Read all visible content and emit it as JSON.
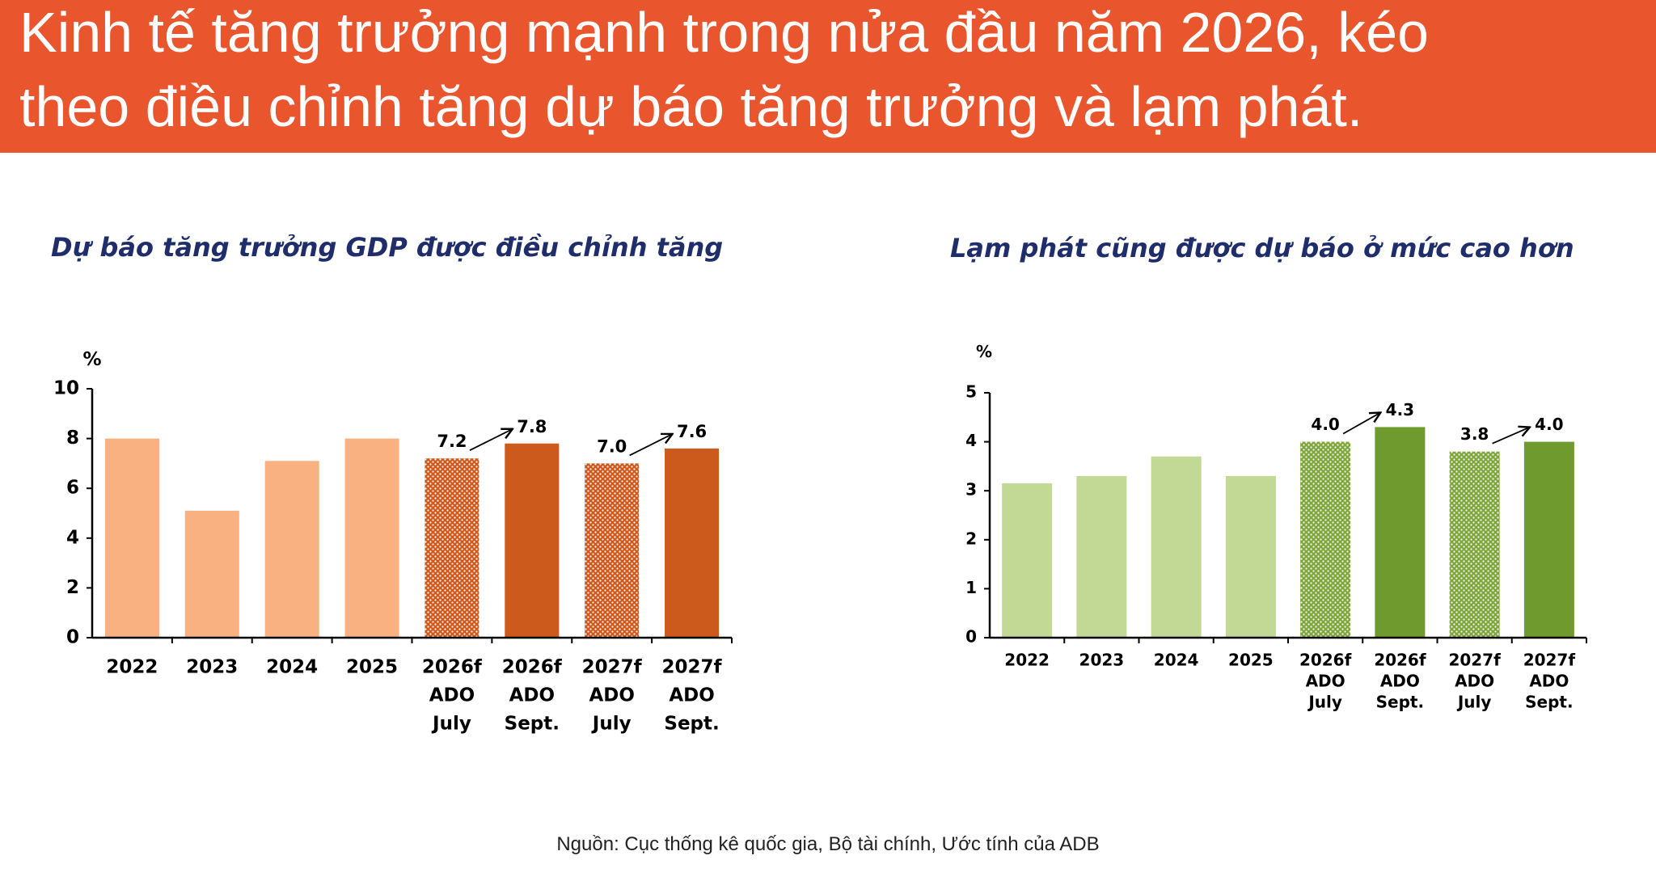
{
  "header": {
    "title": [
      "Kinh tế tăng trưởng mạnh trong nửa đầu năm 2026, kéo",
      "theo điều chỉnh tăng dự báo tăng trưởng và lạm phát."
    ]
  },
  "chart_data": [
    {
      "type": "bar",
      "title": "Dự báo tăng trưởng GDP được điều chỉnh tăng",
      "y_unit": "%",
      "categories": [
        [
          "2022"
        ],
        [
          "2023"
        ],
        [
          "2024"
        ],
        [
          "2025"
        ],
        [
          "2026f",
          "ADO",
          "July"
        ],
        [
          "2026f",
          "ADO",
          "Sept."
        ],
        [
          "2027f",
          "ADO",
          "July"
        ],
        [
          "2027f",
          "ADO",
          "Sept."
        ]
      ],
      "values": [
        8.0,
        5.1,
        7.1,
        8.0,
        7.2,
        7.8,
        7.0,
        7.6
      ],
      "value_labels": [
        null,
        null,
        null,
        null,
        "7.2",
        "7.8",
        "7.0",
        "7.6"
      ],
      "colors": [
        "#f9b182",
        "#f9b182",
        "#f9b182",
        "#f9b182",
        "#d0581c",
        "#cc5a1c",
        "#d0581c",
        "#cc5a1c"
      ],
      "patterned": [
        false,
        false,
        false,
        false,
        true,
        false,
        true,
        false
      ],
      "ylim": [
        0,
        10
      ],
      "yticks": [
        0,
        2,
        4,
        6,
        8,
        10
      ]
    },
    {
      "type": "bar",
      "title": "Lạm phát cũng được dự báo ở mức cao hơn",
      "y_unit": "%",
      "categories": [
        [
          "2022"
        ],
        [
          "2023"
        ],
        [
          "2024"
        ],
        [
          "2025"
        ],
        [
          "2026f",
          "ADO",
          "July"
        ],
        [
          "2026f",
          "ADO",
          "Sept."
        ],
        [
          "2027f",
          "ADO",
          "July"
        ],
        [
          "2027f",
          "ADO",
          "Sept."
        ]
      ],
      "values": [
        3.15,
        3.3,
        3.7,
        3.3,
        4.0,
        4.3,
        3.8,
        4.0
      ],
      "value_labels": [
        null,
        null,
        null,
        null,
        "4.0",
        "4.3",
        "3.8",
        "4.0"
      ],
      "colors": [
        "#c2d995",
        "#c2d995",
        "#c2d995",
        "#c2d995",
        "#7ea63a",
        "#6e9a2e",
        "#7ea63a",
        "#6e9a2e"
      ],
      "patterned": [
        false,
        false,
        false,
        false,
        true,
        false,
        true,
        false
      ],
      "ylim": [
        0,
        5
      ],
      "yticks": [
        0,
        1,
        2,
        3,
        4,
        5
      ]
    }
  ],
  "source": "Nguồn: Cục thống kê quốc gia, Bộ tài chính,  Ước tính của ADB"
}
